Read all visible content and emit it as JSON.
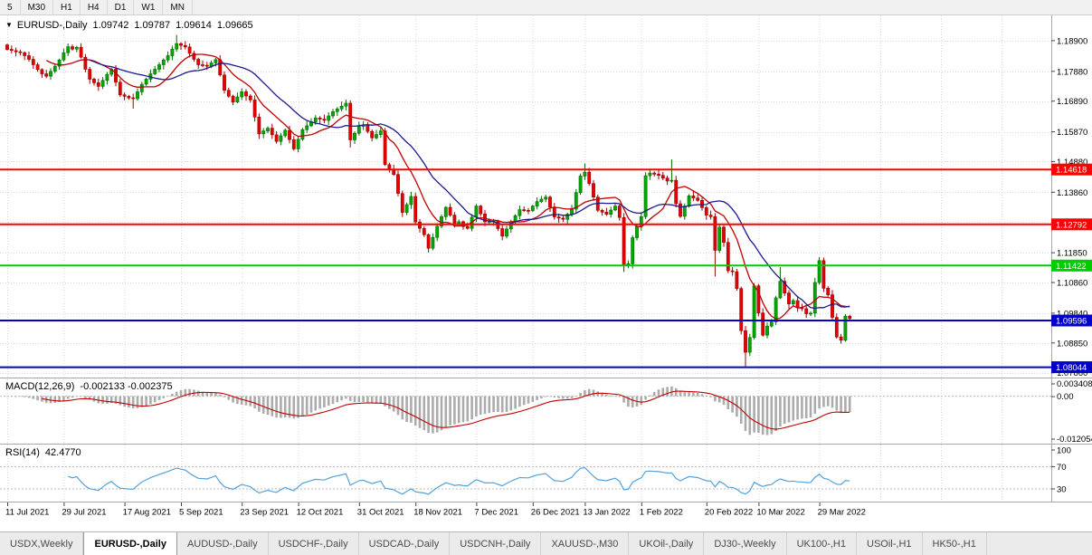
{
  "toolbar": {
    "timeframes": [
      "5",
      "M30",
      "H1",
      "H4",
      "D1",
      "W1",
      "MN"
    ]
  },
  "chart": {
    "title": {
      "symbol": "EURUSD-,Daily",
      "open": "1.09742",
      "high": "1.09787",
      "low": "1.09614",
      "close": "1.09665"
    }
  },
  "indicators": {
    "macd": {
      "label": "MACD(12,26,9)",
      "values": "-0.002133 -0.002375"
    },
    "rsi": {
      "label": "RSI(14)",
      "value": "42.4770"
    }
  },
  "colors": {
    "chart_bg": "#FFFFFF",
    "grid": "#DADADA",
    "separator": "#A8A8A8",
    "bull": "#00A800",
    "bull_border": "#006B00",
    "bear": "#E60000",
    "bear_border": "#9B0000",
    "macd_hist": "#ABABAB",
    "macd_signal": "#C00000",
    "rsi_line": "#53A2D9",
    "level_red": "#FF0000",
    "level_green": "#00CC00",
    "level_blue": "#0000C8",
    "tag_text": "#FFFFFF"
  },
  "tabs": [
    {
      "label": "USDX,Weekly",
      "active": false
    },
    {
      "label": "EURUSD-,Daily",
      "active": true
    },
    {
      "label": "AUDUSD-,Daily",
      "active": false
    },
    {
      "label": "USDCHF-,Daily",
      "active": false
    },
    {
      "label": "USDCAD-,Daily",
      "active": false
    },
    {
      "label": "USDCNH-,Daily",
      "active": false
    },
    {
      "label": "XAUUSD-,M30",
      "active": false
    },
    {
      "label": "UKOil-,Daily",
      "active": false
    },
    {
      "label": "DJ30-,Weekly",
      "active": false
    },
    {
      "label": "UK100-,H1",
      "active": false
    },
    {
      "label": "USOil-,H1",
      "active": false
    },
    {
      "label": "HK50-,H1",
      "active": false
    }
  ],
  "chart_data": {
    "type": "candlestick",
    "symbol": "EURUSD",
    "timeframe": "Daily",
    "title": "EURUSD-,Daily 1.09742 1.09787 1.09614 1.09665",
    "x_axis": {
      "labels": [
        "11 Jul 2021",
        "29 Jul 2021",
        "17 Aug 2021",
        "5 Sep 2021",
        "23 Sep 2021",
        "12 Oct 2021",
        "31 Oct 2021",
        "18 Nov 2021",
        "7 Dec 2021",
        "26 Dec 2021",
        "13 Jan 2022",
        "1 Feb 2022",
        "20 Feb 2022",
        "10 Mar 2022",
        "29 Mar 2022"
      ],
      "tick_indices": [
        0,
        13,
        27,
        40,
        54,
        67,
        81,
        94,
        108,
        121,
        133,
        146,
        161,
        173,
        187
      ]
    },
    "y_axis": {
      "tick_labels": [
        "1.18900",
        "1.17880",
        "1.16890",
        "1.15870",
        "1.14880",
        "1.13860",
        "1.12870",
        "1.11850",
        "1.10860",
        "1.09840",
        "1.08850",
        "1.07860"
      ],
      "range": [
        1.077,
        1.1974
      ]
    },
    "closes": [
      1.1861,
      1.1857,
      1.1853,
      1.185,
      1.184,
      1.1828,
      1.181,
      1.1794,
      1.178,
      1.1772,
      1.1788,
      1.1805,
      1.1826,
      1.185,
      1.187,
      1.1862,
      1.1868,
      1.1835,
      1.1795,
      1.1762,
      1.175,
      1.1738,
      1.1758,
      1.1778,
      1.1795,
      1.1752,
      1.171,
      1.1705,
      1.17,
      1.1697,
      1.172,
      1.1745,
      1.1762,
      1.178,
      1.1795,
      1.181,
      1.1826,
      1.184,
      1.1862,
      1.188,
      1.1874,
      1.1869,
      1.1848,
      1.1828,
      1.181,
      1.1808,
      1.1805,
      1.1816,
      1.1827,
      1.1776,
      1.1725,
      1.1705,
      1.1686,
      1.1703,
      1.172,
      1.1706,
      1.1693,
      1.1636,
      1.158,
      1.159,
      1.1599,
      1.1577,
      1.1555,
      1.1574,
      1.1592,
      1.1561,
      1.153,
      1.1562,
      1.1594,
      1.1607,
      1.162,
      1.1633,
      1.1629,
      1.1625,
      1.164,
      1.1654,
      1.1663,
      1.1672,
      1.1682,
      1.156,
      1.1582,
      1.1605,
      1.161,
      1.1588,
      1.1567,
      1.1578,
      1.159,
      1.1478,
      1.1462,
      1.1445,
      1.1382,
      1.1319,
      1.1345,
      1.1372,
      1.1287,
      1.1266,
      1.1245,
      1.12,
      1.1236,
      1.1273,
      1.1305,
      1.1336,
      1.131,
      1.128,
      1.1288,
      1.1272,
      1.1266,
      1.1303,
      1.134,
      1.1314,
      1.1288,
      1.1289,
      1.129,
      1.1265,
      1.124,
      1.1264,
      1.1287,
      1.1308,
      1.1328,
      1.1326,
      1.1325,
      1.134,
      1.1355,
      1.1363,
      1.137,
      1.1337,
      1.1304,
      1.13,
      1.1296,
      1.1313,
      1.133,
      1.1385,
      1.144,
      1.1453,
      1.1415,
      1.137,
      1.1326,
      1.132,
      1.1313,
      1.1327,
      1.134,
      1.1302,
      1.1143,
      1.1148,
      1.1235,
      1.1273,
      1.1305,
      1.1441,
      1.145,
      1.1446,
      1.1442,
      1.1433,
      1.1423,
      1.1426,
      1.1348,
      1.1306,
      1.134,
      1.1374,
      1.1367,
      1.1359,
      1.1335,
      1.131,
      1.1305,
      1.1193,
      1.127,
      1.1219,
      1.1125,
      1.1122,
      1.1066,
      1.0926,
      1.0854,
      1.0903,
      1.1075,
      1.0985,
      1.0911,
      1.0941,
      1.0955,
      1.1035,
      1.109,
      1.1051,
      1.1015,
      1.1026,
      1.1003,
      1.0999,
      1.0982,
      1.0984,
      1.1086,
      1.1159,
      1.1067,
      1.1045,
      1.097,
      1.0905,
      1.0894,
      1.0974,
      1.09665
    ],
    "wick_overrides": {
      "29": {
        "low": 1.1664
      },
      "39": {
        "high": 1.1909
      },
      "58": {
        "low": 1.1563
      },
      "66": {
        "low": 1.1524
      },
      "79": {
        "low": 1.1535
      },
      "97": {
        "low": 1.1186
      },
      "133": {
        "high": 1.1482
      },
      "142": {
        "low": 1.1121
      },
      "153": {
        "high": 1.1495
      },
      "163": {
        "low": 1.1106
      },
      "170": {
        "low": 1.0806
      },
      "178": {
        "high": 1.1137
      },
      "187": {
        "high": 1.1171
      }
    },
    "last_candle": {
      "open": 1.09742,
      "high": 1.09787,
      "low": 1.09614,
      "close": 1.09665
    },
    "overlays": [
      {
        "name": "ma-fast",
        "type": "sma",
        "period": 10,
        "color": "#C00000"
      },
      {
        "name": "ma-slow",
        "type": "sma",
        "period": 20,
        "color": "#1A1A8C"
      }
    ],
    "horizontal_lines": [
      {
        "price": 1.14618,
        "label": "1.14618",
        "color": "#FF0000"
      },
      {
        "price": 1.12792,
        "label": "1.12792",
        "color": "#FF0000"
      },
      {
        "price": 1.11422,
        "label": "1.11422",
        "color": "#00CC00"
      },
      {
        "price": 1.09596,
        "label": "1.09596",
        "color": "#0000C8"
      },
      {
        "price": 1.08044,
        "label": "1.08044",
        "color": "#0000C8"
      }
    ],
    "macd": {
      "fast": 12,
      "slow": 26,
      "signal": 9,
      "current": "-0.002133 -0.002375",
      "axis_labels": [
        "0.003408",
        "0.00",
        "-0.012054"
      ],
      "y_range": [
        -0.0121,
        0.0034
      ]
    },
    "rsi": {
      "period": 14,
      "current": "42.4770",
      "levels": [
        70,
        30
      ],
      "axis_labels": [
        "100",
        "70",
        "30"
      ]
    }
  }
}
